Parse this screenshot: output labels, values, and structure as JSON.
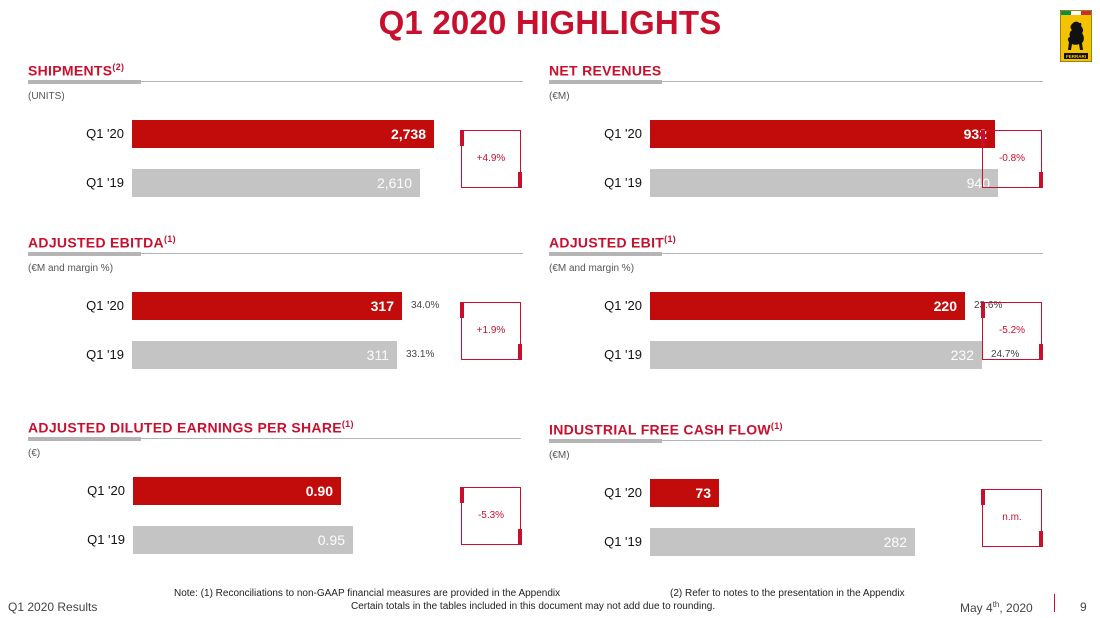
{
  "title": "Q1 2020 HIGHLIGHTS",
  "colors": {
    "accent": "#c8102e",
    "current_bar": "#c20b0b",
    "previous_bar": "#c4c4c4"
  },
  "chart_data": [
    {
      "type": "bar",
      "orientation": "horizontal",
      "title": "SHIPMENTS",
      "superscript": "(2)",
      "units": "(UNITS)",
      "categories": [
        "Q1 '20",
        "Q1 '19"
      ],
      "values": [
        2738,
        2610
      ],
      "value_labels": [
        "2,738",
        "2,610"
      ],
      "margins": [],
      "change": "+4.9%"
    },
    {
      "type": "bar",
      "orientation": "horizontal",
      "title": "NET REVENUES",
      "superscript": "",
      "units": "(€M)",
      "categories": [
        "Q1 '20",
        "Q1 '19"
      ],
      "values": [
        932,
        940
      ],
      "value_labels": [
        "932",
        "940"
      ],
      "margins": [],
      "change": "-0.8%"
    },
    {
      "type": "bar",
      "orientation": "horizontal",
      "title": "ADJUSTED EBITDA",
      "superscript": "(1)",
      "units": "(€M and margin %)",
      "categories": [
        "Q1 '20",
        "Q1 '19"
      ],
      "values": [
        317,
        311
      ],
      "value_labels": [
        "317",
        "311"
      ],
      "margins": [
        "34.0%",
        "33.1%"
      ],
      "change": "+1.9%"
    },
    {
      "type": "bar",
      "orientation": "horizontal",
      "title": "ADJUSTED EBIT",
      "superscript": "(1)",
      "units": "(€M and margin %)",
      "categories": [
        "Q1 '20",
        "Q1 '19"
      ],
      "values": [
        220,
        232
      ],
      "value_labels": [
        "220",
        "232"
      ],
      "margins": [
        "23.6%",
        "24.7%"
      ],
      "change": "-5.2%"
    },
    {
      "type": "bar",
      "orientation": "horizontal",
      "title": "ADJUSTED DILUTED EARNINGS PER SHARE",
      "superscript": "(1)",
      "units": "(€)",
      "categories": [
        "Q1 '20",
        "Q1 '19"
      ],
      "values": [
        0.9,
        0.95
      ],
      "value_labels": [
        "0.90",
        "0.95"
      ],
      "margins": [],
      "change": "-5.3%"
    },
    {
      "type": "bar",
      "orientation": "horizontal",
      "title": "INDUSTRIAL FREE CASH FLOW",
      "superscript": "(1)",
      "units": "(€M)",
      "categories": [
        "Q1 '20",
        "Q1 '19"
      ],
      "values": [
        73,
        282
      ],
      "value_labels": [
        "73",
        "282"
      ],
      "margins": [],
      "change": "n.m."
    }
  ],
  "notes": {
    "note1": "Note: (1) Reconciliations to non-GAAP financial measures are provided in the Appendix",
    "note2": "(2) Refer to notes to the presentation in the Appendix",
    "note3": "Certain totals in the tables included in this document may not add due to rounding."
  },
  "footer": {
    "left": "Q1 2020 Results",
    "date": "May 4",
    "date_sup": "th",
    "date_year": ", 2020",
    "page": "9"
  },
  "logo": {
    "icon": "prancing-horse-logo",
    "text": "FERRARI"
  }
}
